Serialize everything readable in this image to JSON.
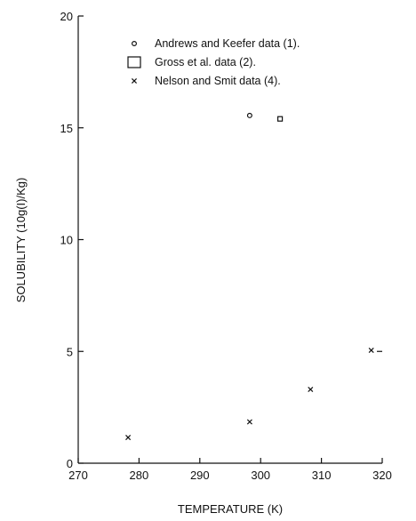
{
  "chart_data": {
    "type": "scatter",
    "title": "",
    "xlabel": "TEMPERATURE (K)",
    "ylabel": "SOLUBILITY (10g(I)/Kg)",
    "xlim": [
      270,
      320
    ],
    "ylim": [
      0,
      20
    ],
    "x_ticks": [
      "270",
      "280",
      "290",
      "300",
      "310",
      "320"
    ],
    "y_ticks": [
      "0",
      "5",
      "10",
      "15",
      "20"
    ],
    "grid": false,
    "legend_position": "top-center",
    "series": [
      {
        "name": "Andrews and Keefer data (1).",
        "marker": "circle",
        "points": [
          {
            "x": 298.2,
            "y": 15.55
          }
        ]
      },
      {
        "name": "Gross et al. data (2).",
        "marker": "square",
        "points": [
          {
            "x": 303.2,
            "y": 15.4
          }
        ]
      },
      {
        "name": "Nelson and Smit data (4).",
        "marker": "x",
        "points": [
          {
            "x": 278.2,
            "y": 1.15
          },
          {
            "x": 298.2,
            "y": 1.85
          },
          {
            "x": 308.2,
            "y": 3.3
          },
          {
            "x": 318.2,
            "y": 5.05
          }
        ]
      }
    ]
  }
}
